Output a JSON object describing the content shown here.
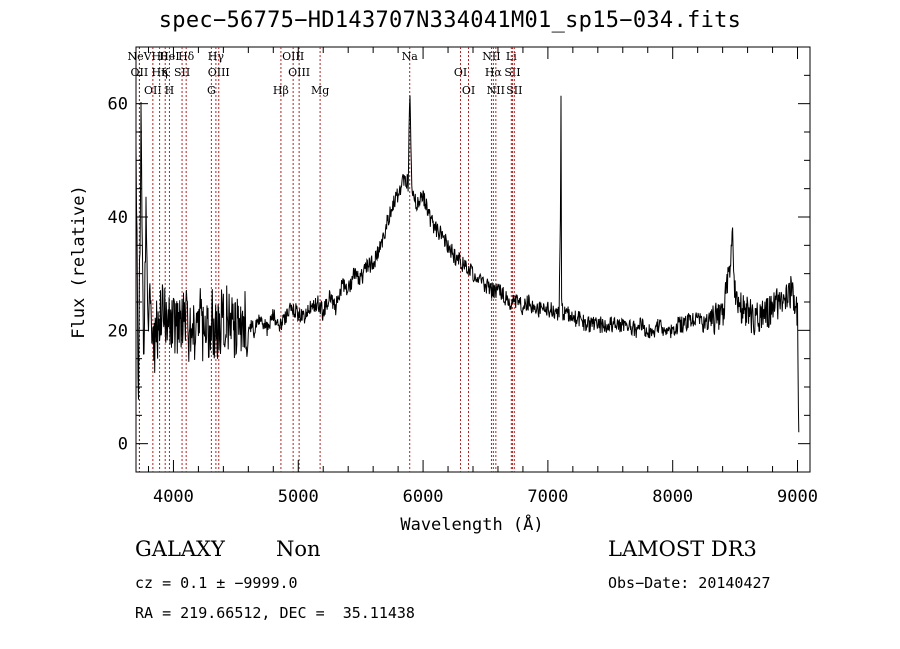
{
  "chart_data": {
    "type": "line",
    "title": "spec−56775−HD143707N334041M01_sp15−034.fits",
    "xlabel": "Wavelength (Å)",
    "ylabel": "Flux (relative)",
    "xlim": [
      3700,
      9100
    ],
    "ylim": [
      -5,
      70
    ],
    "xticks": [
      "4000",
      "5000",
      "6000",
      "7000",
      "8000",
      "9000"
    ],
    "yticks": [
      "0",
      "20",
      "40",
      "60"
    ],
    "series": [
      {
        "x": [
          3700,
          3720,
          3740,
          3760,
          3780,
          3800,
          3850,
          3900,
          3950,
          4000,
          4050,
          4100,
          4150,
          4200,
          4250,
          4300,
          4350,
          4400,
          4450,
          4500,
          4550,
          4600,
          4650,
          4700,
          4750,
          4800,
          4850,
          4900,
          4950,
          5000,
          5050,
          5100,
          5150,
          5200,
          5250,
          5300,
          5350,
          5400,
          5450,
          5500,
          5550,
          5600,
          5650,
          5700,
          5750,
          5800,
          5850,
          5880,
          5895,
          5910,
          5950,
          6000,
          6050,
          6100,
          6150,
          6200,
          6250,
          6300,
          6350,
          6400,
          6450,
          6500,
          6550,
          6600,
          6650,
          6700,
          6750,
          6800,
          6850,
          6900,
          6950,
          7000,
          7050,
          7090,
          7100,
          7105,
          7110,
          7120,
          7150,
          7200,
          7250,
          7300,
          7350,
          7400,
          7450,
          7500,
          7550,
          7600,
          7650,
          7700,
          7750,
          7800,
          7850,
          7900,
          7950,
          8000,
          8050,
          8100,
          8150,
          8200,
          8250,
          8300,
          8350,
          8400,
          8450,
          8480,
          8500,
          8550,
          8600,
          8650,
          8700,
          8750,
          8800,
          8850,
          8900,
          8950,
          8980,
          9000,
          9010
        ],
        "values": [
          50,
          8,
          55,
          15,
          40,
          25,
          18,
          24,
          21,
          22,
          20,
          22,
          18,
          24,
          17,
          22,
          20,
          23,
          21,
          19,
          22,
          21,
          20,
          22,
          20,
          23,
          21,
          22,
          24,
          23,
          22,
          24,
          25,
          23,
          26,
          24,
          28,
          27,
          30,
          29,
          31,
          32,
          34,
          38,
          42,
          44,
          47,
          46,
          62,
          46,
          42,
          44,
          40,
          38,
          37,
          35,
          33,
          32,
          31,
          30,
          29,
          28,
          27,
          27,
          26,
          25,
          25,
          24,
          25,
          23,
          24,
          24,
          23,
          23,
          40,
          60,
          26,
          23,
          23,
          22,
          22,
          21,
          21,
          21,
          21,
          21,
          21,
          21,
          21,
          20,
          21,
          20,
          20,
          21,
          19,
          20,
          21,
          21,
          22,
          22,
          21,
          22,
          22,
          23,
          30,
          38,
          26,
          24,
          23,
          22,
          22,
          23,
          24,
          25,
          26,
          27,
          25,
          22,
          2
        ],
        "color": "#000000"
      }
    ],
    "lines": [
      {
        "w": 3728,
        "labels": [
          "NeV"
        ],
        "color": "#b22222"
      },
      {
        "w": 3727,
        "labels": [
          "OII"
        ]
      },
      {
        "w": 3835,
        "labels": [
          "OII"
        ]
      },
      {
        "w": 3889,
        "labels": [
          "Hθ",
          "Hη"
        ]
      },
      {
        "w": 3934,
        "labels": [
          "K"
        ]
      },
      {
        "w": 3968,
        "labels": [
          "H",
          "HeI"
        ]
      },
      {
        "w": 4102,
        "labels": [
          "Hδ"
        ]
      },
      {
        "w": 4069,
        "labels": [
          "SII"
        ]
      },
      {
        "w": 4304,
        "labels": [
          "G"
        ]
      },
      {
        "w": 4340,
        "labels": [
          "Hγ"
        ]
      },
      {
        "w": 4363,
        "labels": [
          "OIII"
        ]
      },
      {
        "w": 4861,
        "labels": [
          "Hβ"
        ]
      },
      {
        "w": 4959,
        "labels": [
          "OIII"
        ]
      },
      {
        "w": 5007,
        "labels": [
          "OIII"
        ]
      },
      {
        "w": 5175,
        "labels": [
          "Mg"
        ]
      },
      {
        "w": 5893,
        "labels": [
          "Na"
        ]
      },
      {
        "w": 6300,
        "labels": [
          "OI"
        ]
      },
      {
        "w": 6364,
        "labels": [
          "OI"
        ]
      },
      {
        "w": 6548,
        "labels": [
          "NII"
        ]
      },
      {
        "w": 6563,
        "labels": [
          "Hα"
        ]
      },
      {
        "w": 6583,
        "labels": [
          "NII"
        ]
      },
      {
        "w": 6707,
        "labels": [
          "Li"
        ]
      },
      {
        "w": 6716,
        "labels": [
          "SII"
        ]
      },
      {
        "w": 6731,
        "labels": [
          "SII"
        ]
      }
    ]
  },
  "info": {
    "class": "GALAXY",
    "subclass": "Non",
    "survey": "LAMOST DR3",
    "cz": "cz = 0.1 ± −9999.0",
    "obs_date": "Obs−Date: 20140427",
    "radec": "RA = 219.66512, DEC =  35.11438"
  }
}
